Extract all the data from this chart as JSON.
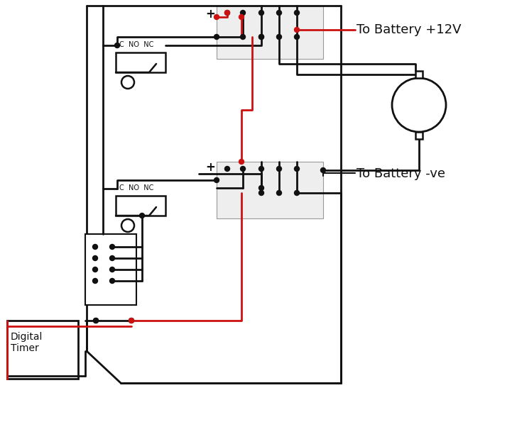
{
  "bk": "#111111",
  "rd": "#cc1111",
  "lw": 2.0,
  "battery_12v": "To Battery +12V",
  "battery_ve": "To Battery -ve",
  "timer_text": "Digital\nTimer",
  "relay_label": "C  NO  NC"
}
